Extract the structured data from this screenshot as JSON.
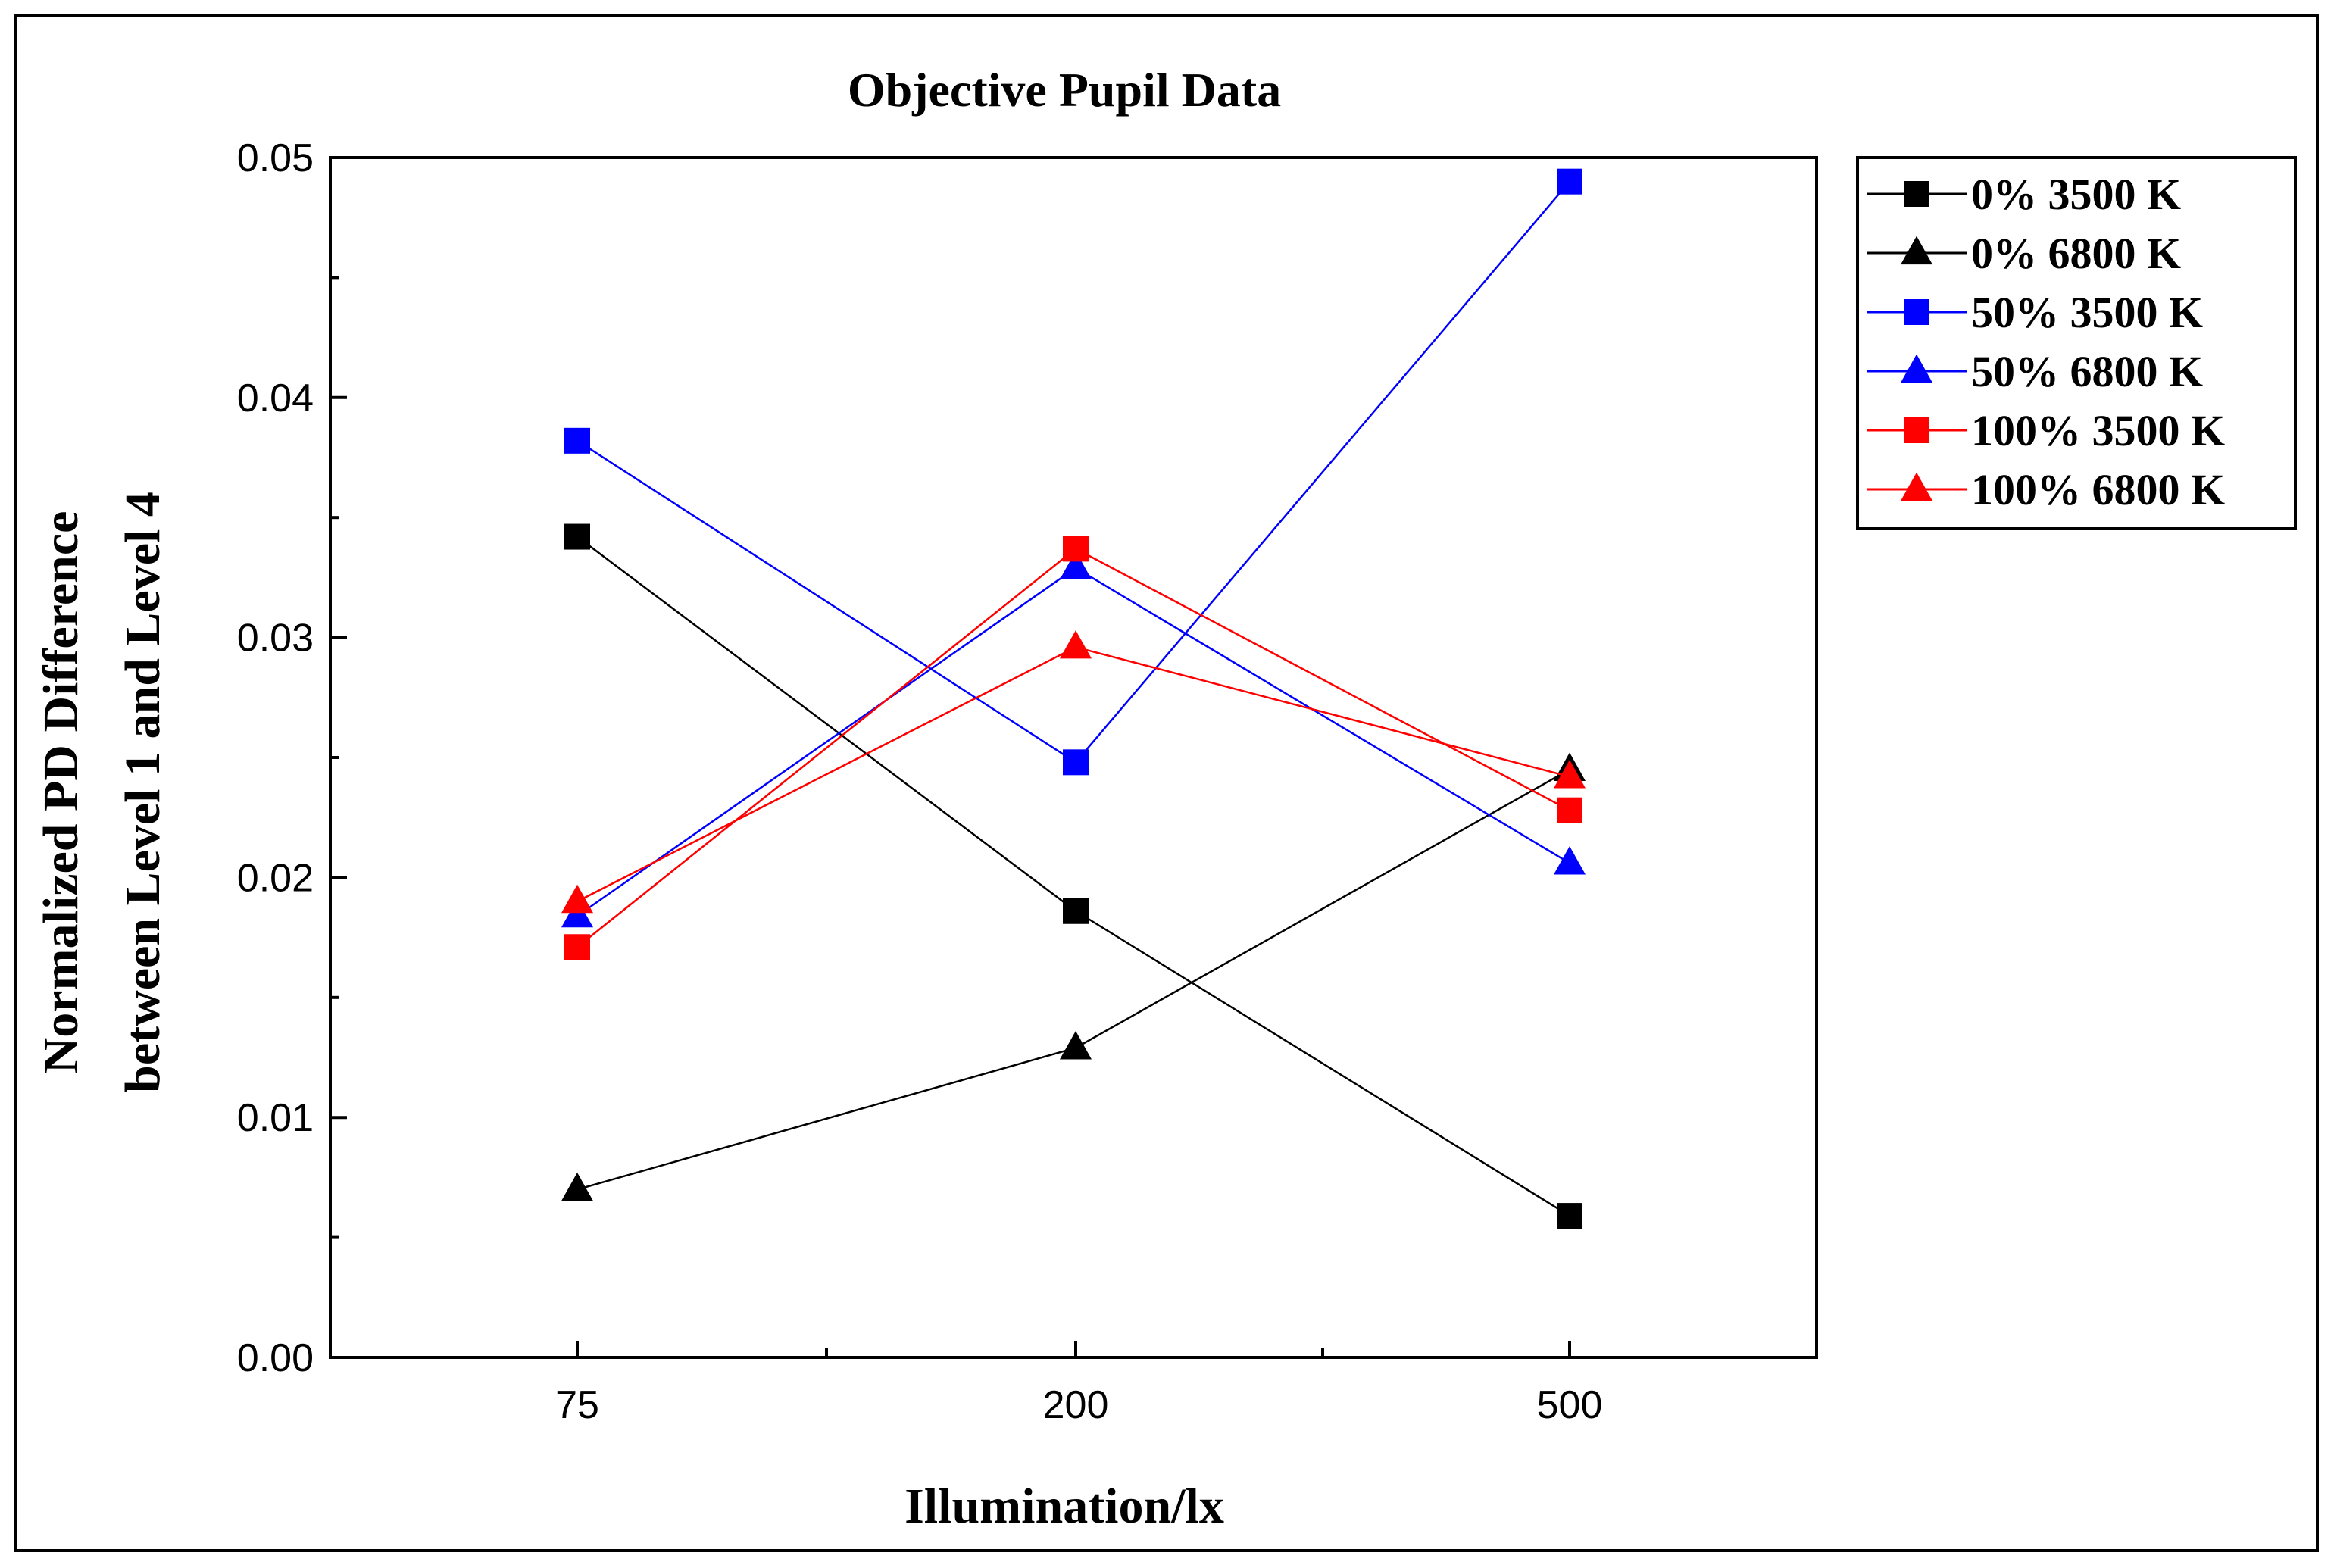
{
  "chart_data": {
    "type": "line",
    "title": "Objective Pupil Data",
    "xlabel": "Illumination/lx",
    "ylabel_line1": "Normalized PD Difference",
    "ylabel_line2": "between Level 1 and Level 4",
    "categories": [
      "75",
      "200",
      "500"
    ],
    "ylim": [
      0,
      0.05
    ],
    "yticks": [
      "0.00",
      "0.01",
      "0.02",
      "0.03",
      "0.04",
      "0.05"
    ],
    "grid": false,
    "legend_position": "right-top",
    "series": [
      {
        "name": "0% 3500 K",
        "color": "#000000",
        "marker": "square",
        "values": [
          0.0342,
          0.0186,
          0.0059
        ]
      },
      {
        "name": "0% 6800 K",
        "color": "#000000",
        "marker": "triangle",
        "values": [
          0.007,
          0.0129,
          0.0245
        ]
      },
      {
        "name": "50% 3500 K",
        "color": "#0000ff",
        "marker": "square",
        "values": [
          0.0382,
          0.0248,
          0.049
        ]
      },
      {
        "name": "50% 6800 K",
        "color": "#0000ff",
        "marker": "triangle",
        "values": [
          0.0184,
          0.0329,
          0.0206
        ]
      },
      {
        "name": "100% 3500 K",
        "color": "#ff0000",
        "marker": "square",
        "values": [
          0.0171,
          0.0337,
          0.0228
        ]
      },
      {
        "name": "100% 6800 K",
        "color": "#ff0000",
        "marker": "triangle",
        "values": [
          0.019,
          0.0296,
          0.0242
        ]
      }
    ]
  }
}
